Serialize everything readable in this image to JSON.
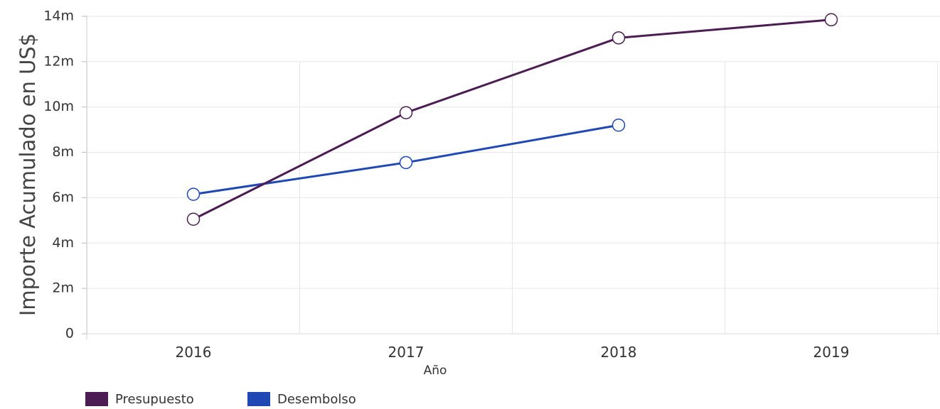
{
  "chart_data": {
    "type": "line",
    "categories": [
      "2016",
      "2017",
      "2018",
      "2019"
    ],
    "series": [
      {
        "name": "Presupuesto",
        "color": "#4b1d52",
        "values": [
          5.05,
          9.75,
          13.05,
          13.85
        ]
      },
      {
        "name": "Desembolso",
        "color": "#1f48b5",
        "values": [
          6.15,
          7.55,
          9.2,
          null
        ]
      }
    ],
    "ylabel": "Importe Acumulado en US$",
    "xlabel": "Año",
    "ylim": [
      0,
      14
    ],
    "yticks": [
      {
        "value": 0,
        "label": "0"
      },
      {
        "value": 2,
        "label": "2m"
      },
      {
        "value": 4,
        "label": "4m"
      },
      {
        "value": 6,
        "label": "6m"
      },
      {
        "value": 8,
        "label": "8m"
      },
      {
        "value": 10,
        "label": "10m"
      },
      {
        "value": 12,
        "label": "12m"
      },
      {
        "value": 14,
        "label": "14m"
      }
    ],
    "grid": true,
    "legend_position": "bottom-left"
  }
}
